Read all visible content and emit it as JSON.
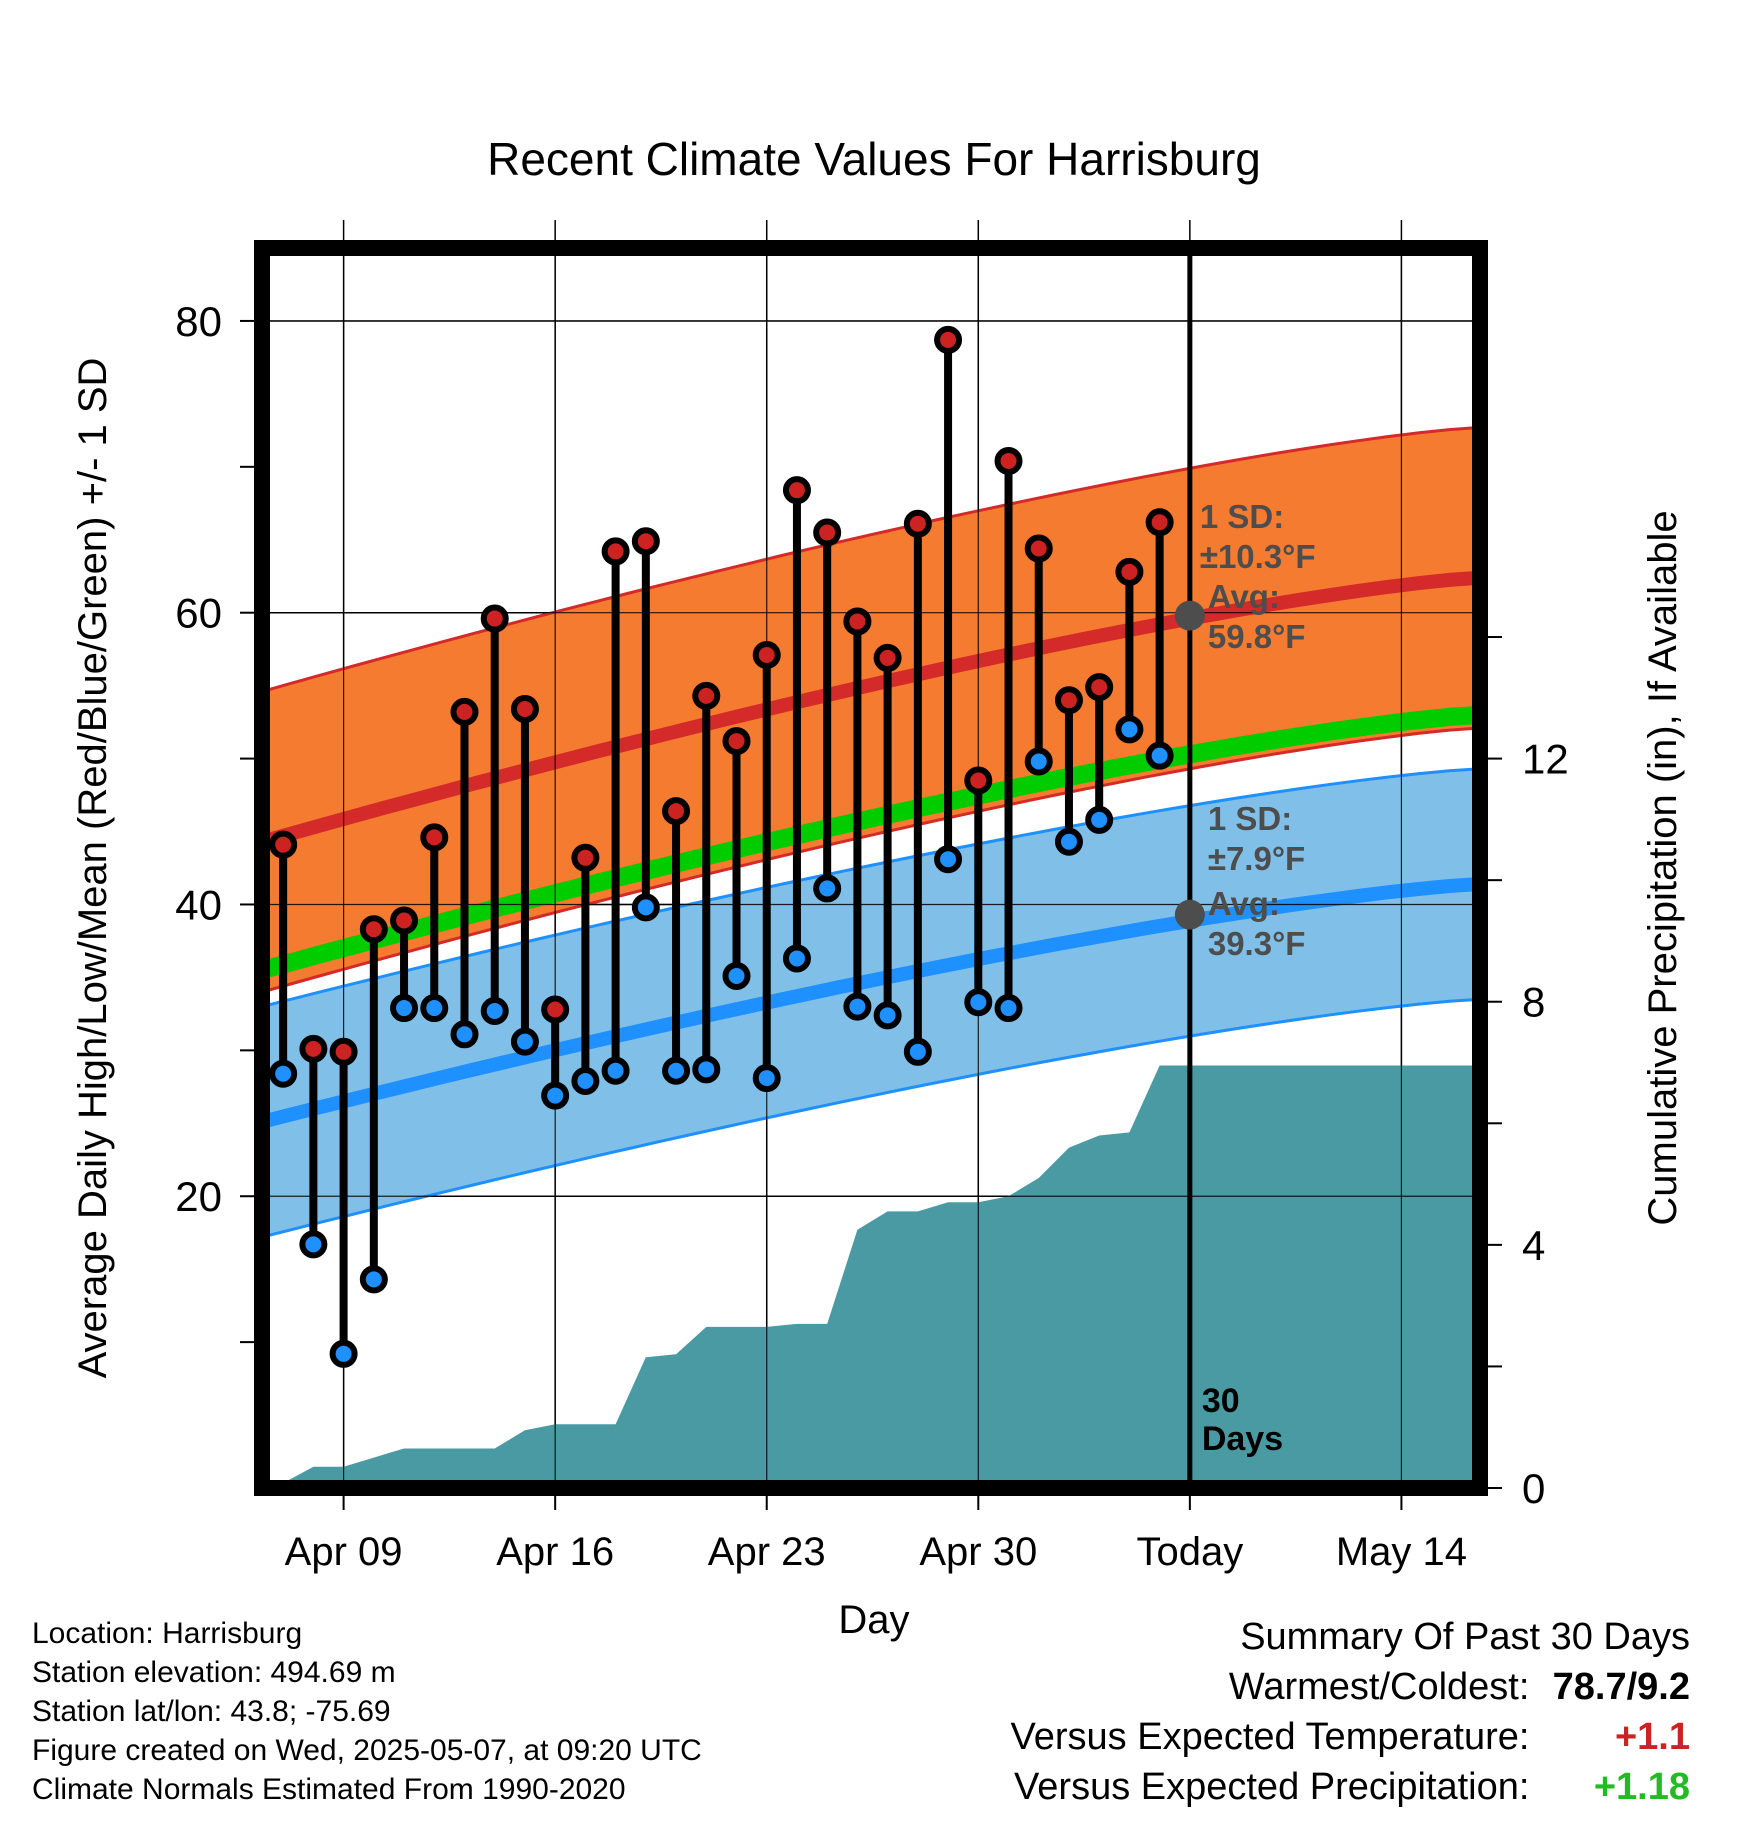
{
  "chart_data": {
    "type": "line",
    "title": "Recent Climate Values For Harrisburg",
    "xlabel": "Day",
    "ylabel_left": "Average Daily High/Low/Mean (Red/Blue/Green) +/- 1 SD",
    "ylabel_right": "Cumulative Precipitation (in), If Available",
    "ylim_left": [
      0,
      85
    ],
    "ylim_right": [
      0,
      20.4
    ],
    "y_ticks_left": [
      "20",
      "40",
      "60",
      "80"
    ],
    "y_ticks_right": [
      "0",
      "4",
      "8",
      "12"
    ],
    "x_tick_labels": [
      "Apr 09",
      "Apr 16",
      "Apr 23",
      "Apr 30",
      "Today",
      "May 14"
    ],
    "x_tick_days": [
      0,
      7,
      14,
      21,
      28,
      35
    ],
    "x_range_days": [
      -2.7,
      37.6
    ],
    "today_day": 28,
    "today_label": "30\nDays",
    "days_label_line1": "30",
    "days_label_line2": "Days",
    "normals": {
      "high_mean": [
        44.3,
        62.4
      ],
      "high_sd": 10.3,
      "low_mean": [
        25.1,
        41.4
      ],
      "low_sd": 7.9,
      "mean_line": [
        35.5,
        53.0
      ]
    },
    "annotations": {
      "high": {
        "sd_label": "1 SD:",
        "sd_value": "±10.3°F",
        "avg_label": "Avg:",
        "avg_value": "59.8°F",
        "value": 59.8
      },
      "low": {
        "sd_label": "1 SD:",
        "sd_value": "±7.9°F",
        "avg_label": "Avg:",
        "avg_value": "39.3°F",
        "value": 39.3
      }
    },
    "daily_days": [
      -2,
      -1,
      0,
      1,
      2,
      3,
      4,
      5,
      6,
      7,
      8,
      9,
      10,
      11,
      12,
      13,
      14,
      15,
      16,
      17,
      18,
      19,
      20,
      21,
      22,
      23,
      24,
      25,
      26,
      27
    ],
    "highs": [
      44.1,
      30.1,
      29.9,
      38.3,
      38.9,
      44.6,
      53.2,
      59.6,
      53.4,
      32.8,
      43.2,
      64.2,
      64.9,
      46.4,
      54.3,
      51.2,
      57.1,
      68.4,
      65.5,
      59.4,
      56.9,
      66.1,
      78.7,
      48.5,
      70.4,
      64.4,
      54.0,
      54.9,
      62.8,
      66.2
    ],
    "lows": [
      28.4,
      16.7,
      9.2,
      14.3,
      32.9,
      32.9,
      31.1,
      32.7,
      30.6,
      26.9,
      27.9,
      28.6,
      39.8,
      28.6,
      28.7,
      35.1,
      28.1,
      36.3,
      41.1,
      33.0,
      32.4,
      29.9,
      43.1,
      33.3,
      32.9,
      49.8,
      44.3,
      45.8,
      52.0,
      50.2
    ],
    "precip_days": [
      -2.3,
      -1,
      0,
      1,
      2,
      3,
      4,
      5,
      6,
      7,
      8,
      9,
      10,
      11,
      12,
      13,
      14,
      15,
      16,
      17,
      18,
      19,
      20,
      21,
      22,
      23,
      24,
      25,
      26,
      27,
      28,
      37.6
    ],
    "precip": [
      0,
      0.35,
      0.35,
      0.5,
      0.65,
      0.65,
      0.65,
      0.65,
      0.95,
      1.05,
      1.05,
      1.05,
      2.15,
      2.2,
      2.65,
      2.65,
      2.65,
      2.7,
      2.7,
      4.25,
      4.55,
      4.55,
      4.7,
      4.7,
      4.8,
      5.1,
      5.6,
      5.8,
      5.85,
      6.95,
      6.95,
      6.95
    ]
  },
  "footer": {
    "location": "Location: Harrisburg",
    "elevation": "Station elevation: 494.69 m",
    "latlon": "Station lat/lon: 43.8; -75.69",
    "created": "Figure created on Wed, 2025-05-07, at 09:20 UTC",
    "normals_note": "Climate Normals Estimated From 1990-2020"
  },
  "summary": {
    "heading": "Summary Of Past 30 Days",
    "warmest_coldest_label": "Warmest/Coldest:",
    "warmest_coldest_value": "78.7/9.2",
    "temp_label": "Versus Expected Temperature:",
    "temp_value": "+1.1",
    "precip_label": "Versus Expected Precipitation:",
    "precip_value": "+1.18"
  },
  "colors": {
    "high_band": "#f47b2f",
    "high_line": "#d42a2a",
    "low_band": "#80c0e8",
    "low_line": "#1e90ff",
    "mean_line": "#00cc00",
    "precip_fill": "#4a9aa4",
    "high_dot": "#cc2222",
    "low_dot": "#1e90ff",
    "temp_value": "#cc2222",
    "precip_value": "#22bb22"
  }
}
